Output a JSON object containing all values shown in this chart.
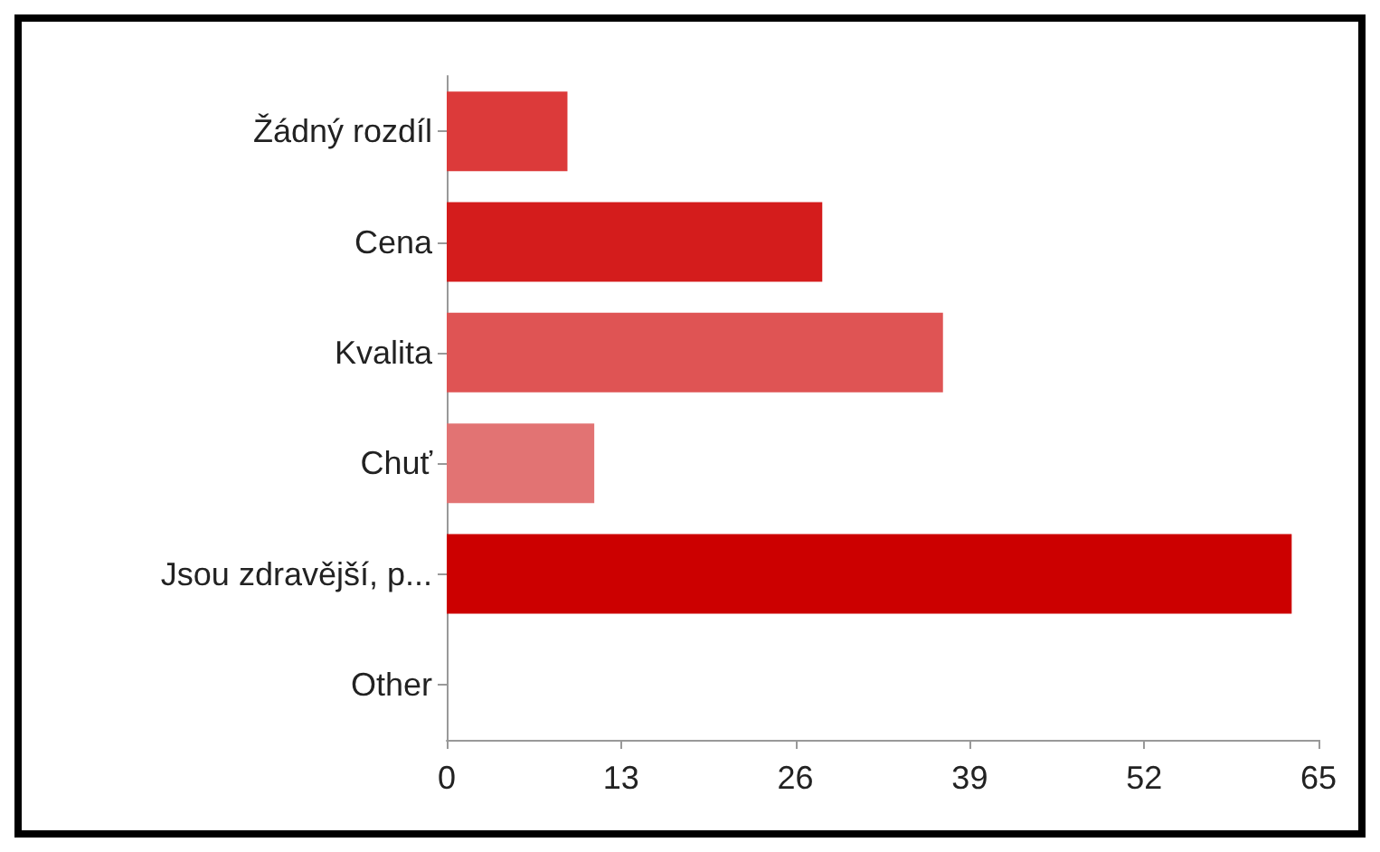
{
  "chart_data": {
    "type": "bar",
    "orientation": "horizontal",
    "categories": [
      "Žádný rozdíl",
      "Cena",
      "Kvalita",
      "Chuť",
      "Jsou zdravější, p...",
      "Other"
    ],
    "values": [
      9,
      28,
      37,
      11,
      63,
      0
    ],
    "colors": [
      "#dc3a3a",
      "#d41c1c",
      "#df5454",
      "#e27373",
      "#cc0000",
      "#cc0000"
    ],
    "xlim": [
      0,
      65
    ],
    "xticks": [
      0,
      13,
      26,
      39,
      52,
      65
    ]
  }
}
